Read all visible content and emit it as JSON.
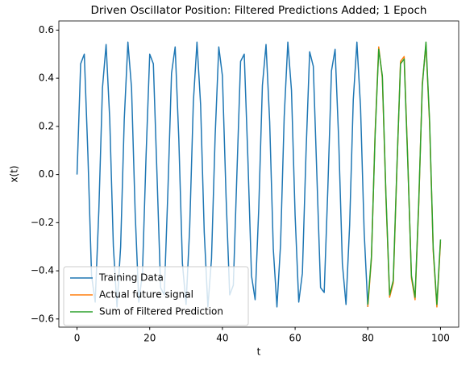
{
  "chart_data": {
    "type": "line",
    "title": "Driven Oscillator Position: Filtered Predictions Added; 1 Epoch",
    "xlabel": "t",
    "ylabel": "x(t)",
    "xlim": [
      -5,
      105
    ],
    "xticks": [
      0,
      20,
      40,
      60,
      80,
      100
    ],
    "ylim": [
      -0.634,
      0.638
    ],
    "yticks": [
      {
        "value": -0.6,
        "label": "−0.6"
      },
      {
        "value": -0.4,
        "label": "−0.4"
      },
      {
        "value": -0.2,
        "label": "−0.2"
      },
      {
        "value": 0.0,
        "label": "0.0"
      },
      {
        "value": 0.2,
        "label": "0.2"
      },
      {
        "value": 0.4,
        "label": "0.4"
      },
      {
        "value": 0.6,
        "label": "0.6"
      }
    ],
    "legend": "lower left",
    "x": [
      0,
      1,
      2,
      3,
      4,
      5,
      6,
      7,
      8,
      9,
      10,
      11,
      12,
      13,
      14,
      15,
      16,
      17,
      18,
      19,
      20,
      21,
      22,
      23,
      24,
      25,
      26,
      27,
      28,
      29,
      30,
      31,
      32,
      33,
      34,
      35,
      36,
      37,
      38,
      39,
      40,
      41,
      42,
      43,
      44,
      45,
      46,
      47,
      48,
      49,
      50,
      51,
      52,
      53,
      54,
      55,
      56,
      57,
      58,
      59,
      60,
      61,
      62,
      63,
      64,
      65,
      66,
      67,
      68,
      69,
      70,
      71,
      72,
      73,
      74,
      75,
      76,
      77,
      78,
      79,
      80,
      81,
      82,
      83,
      84,
      85,
      86,
      87,
      88,
      89,
      90,
      91,
      92,
      93,
      94,
      95,
      96,
      97,
      98,
      99,
      100
    ],
    "series": [
      {
        "name": "Training Data",
        "color": "#1f77b4",
        "values": [
          0,
          0.46,
          0.5,
          0.08,
          -0.42,
          -0.53,
          -0.15,
          0.36,
          0.54,
          0.23,
          -0.3,
          -0.55,
          -0.3,
          0.23,
          0.55,
          0.36,
          -0.16,
          -0.53,
          -0.41,
          0.08,
          0.5,
          0.46,
          0,
          -0.47,
          -0.5,
          -0.07,
          0.42,
          0.53,
          0.15,
          -0.37,
          -0.54,
          -0.22,
          0.3,
          0.55,
          0.29,
          -0.24,
          -0.55,
          -0.35,
          0.16,
          0.53,
          0.41,
          -0.09,
          -0.5,
          -0.46,
          0.01,
          0.47,
          0.5,
          0.07,
          -0.42,
          -0.52,
          -0.14,
          0.37,
          0.54,
          0.22,
          -0.31,
          -0.55,
          -0.29,
          0.24,
          0.55,
          0.35,
          -0.17,
          -0.53,
          -0.41,
          0.09,
          0.51,
          0.45,
          -0.01,
          -0.47,
          -0.49,
          -0.06,
          0.43,
          0.52,
          0.14,
          -0.37,
          -0.54,
          -0.21,
          0.31,
          0.55,
          0.28,
          -0.24,
          -0.55,
          null,
          null,
          null,
          null,
          null,
          null,
          null,
          null,
          null,
          null,
          null,
          null,
          null,
          null,
          null,
          null,
          null,
          null,
          null,
          null
        ]
      },
      {
        "name": "Actual future signal",
        "color": "#ff7f0e",
        "values": [
          null,
          null,
          null,
          null,
          null,
          null,
          null,
          null,
          null,
          null,
          null,
          null,
          null,
          null,
          null,
          null,
          null,
          null,
          null,
          null,
          null,
          null,
          null,
          null,
          null,
          null,
          null,
          null,
          null,
          null,
          null,
          null,
          null,
          null,
          null,
          null,
          null,
          null,
          null,
          null,
          null,
          null,
          null,
          null,
          null,
          null,
          null,
          null,
          null,
          null,
          null,
          null,
          null,
          null,
          null,
          null,
          null,
          null,
          null,
          null,
          null,
          null,
          null,
          null,
          null,
          null,
          null,
          null,
          null,
          null,
          null,
          null,
          null,
          null,
          null,
          null,
          null,
          null,
          null,
          null,
          -0.55,
          -0.35,
          0.17,
          0.53,
          0.4,
          -0.1,
          -0.51,
          -0.45,
          0.02,
          0.47,
          0.49,
          0.06,
          -0.43,
          -0.52,
          -0.13,
          0.38,
          0.54,
          0.21,
          -0.32,
          -0.55,
          -0.28
        ]
      },
      {
        "name": "Sum of Filtered Prediction",
        "color": "#2ca02c",
        "values": [
          null,
          null,
          null,
          null,
          null,
          null,
          null,
          null,
          null,
          null,
          null,
          null,
          null,
          null,
          null,
          null,
          null,
          null,
          null,
          null,
          null,
          null,
          null,
          null,
          null,
          null,
          null,
          null,
          null,
          null,
          null,
          null,
          null,
          null,
          null,
          null,
          null,
          null,
          null,
          null,
          null,
          null,
          null,
          null,
          null,
          null,
          null,
          null,
          null,
          null,
          null,
          null,
          null,
          null,
          null,
          null,
          null,
          null,
          null,
          null,
          null,
          null,
          null,
          null,
          null,
          null,
          null,
          null,
          null,
          null,
          null,
          null,
          null,
          null,
          null,
          null,
          null,
          null,
          null,
          null,
          -0.54,
          -0.34,
          0.16,
          0.52,
          0.41,
          -0.09,
          -0.5,
          -0.44,
          0.03,
          0.46,
          0.48,
          0.05,
          -0.42,
          -0.51,
          -0.12,
          0.37,
          0.55,
          0.22,
          -0.31,
          -0.54,
          -0.27
        ]
      }
    ]
  }
}
